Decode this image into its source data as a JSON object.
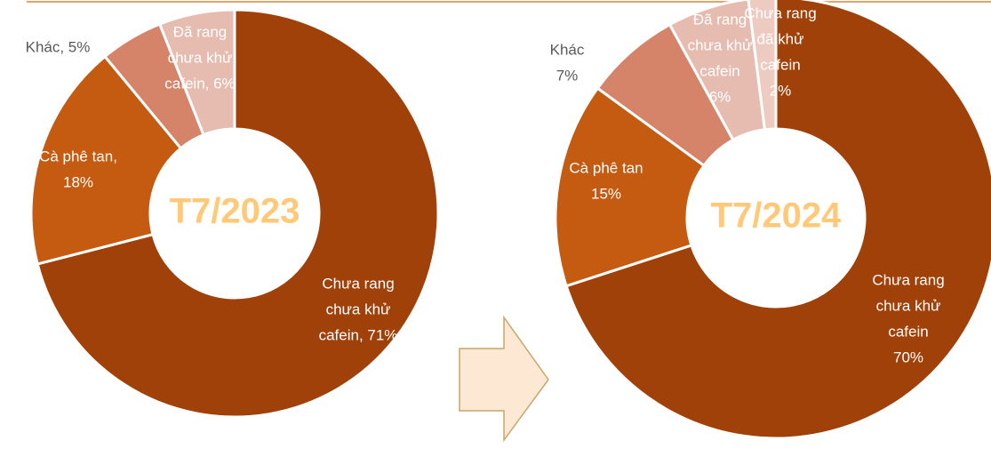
{
  "chart_data": [
    {
      "type": "donut",
      "title": "T7/2023",
      "values": [
        71,
        18,
        5,
        6
      ],
      "value_labels": [
        [
          "Chưa rang",
          "chưa khử",
          "cafein, 71%"
        ],
        [
          "Cà phê tan,",
          "18%"
        ],
        [
          "Khác, 5%"
        ],
        [
          "Đã rang",
          "chưa khử",
          "cafein, 6%"
        ]
      ],
      "colors": [
        "#a0410a",
        "#c55a11",
        "#d5846a",
        "#e6bcb0"
      ]
    },
    {
      "type": "donut",
      "title": "T7/2024",
      "values": [
        70,
        15,
        7,
        6,
        2
      ],
      "value_labels": [
        [
          "Chưa rang",
          "chưa khử",
          "cafein",
          "70%"
        ],
        [
          "Cà phê tan",
          "15%"
        ],
        [
          "Khác",
          "7%"
        ],
        [
          "Đã rang",
          "chưa khử",
          "cafein",
          "6%"
        ],
        [
          "Chưa rang",
          "đã khử",
          "cafein",
          "2%"
        ]
      ],
      "colors": [
        "#a0410a",
        "#c55a11",
        "#d5846a",
        "#e6bcb0",
        "#eecbc1"
      ]
    }
  ]
}
